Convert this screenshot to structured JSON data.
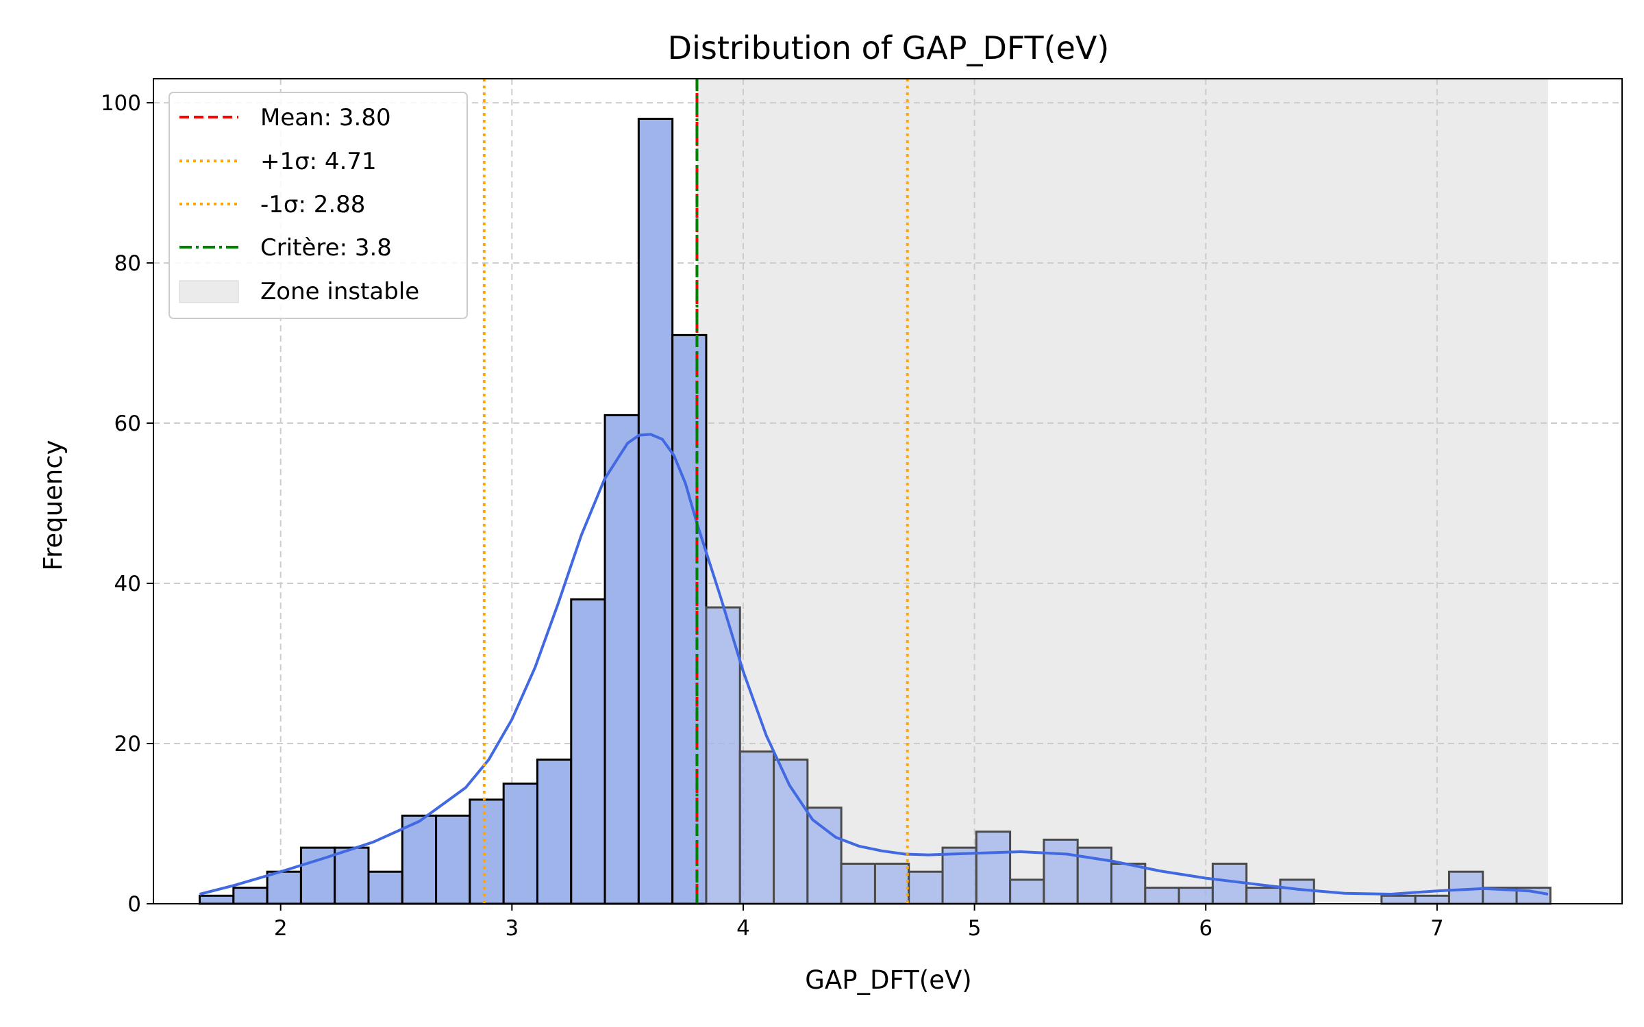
{
  "chart_data": {
    "type": "bar",
    "title": "Distribution of GAP_DFT(eV)",
    "xlabel": "GAP_DFT(eV)",
    "ylabel": "Frequency",
    "xlim": [
      1.45,
      7.8
    ],
    "ylim": [
      0,
      103
    ],
    "xticks": [
      2,
      3,
      4,
      5,
      6,
      7
    ],
    "yticks": [
      0,
      20,
      40,
      60,
      80,
      100
    ],
    "grid": true,
    "bin_width": 0.146,
    "bins_start": 1.65,
    "counts": [
      1,
      2,
      4,
      7,
      7,
      4,
      11,
      11,
      13,
      15,
      18,
      38,
      61,
      98,
      71,
      37,
      19,
      18,
      12,
      5,
      5,
      4,
      7,
      9,
      3,
      8,
      7,
      5,
      2,
      2,
      5,
      2,
      3,
      0,
      0,
      1,
      1,
      4,
      2,
      2
    ],
    "kde": {
      "x": [
        1.65,
        1.8,
        2.0,
        2.2,
        2.4,
        2.6,
        2.8,
        2.9,
        3.0,
        3.1,
        3.2,
        3.3,
        3.4,
        3.5,
        3.55,
        3.6,
        3.65,
        3.7,
        3.75,
        3.8,
        3.9,
        4.0,
        4.1,
        4.2,
        4.3,
        4.4,
        4.5,
        4.6,
        4.7,
        4.8,
        5.0,
        5.2,
        5.4,
        5.6,
        5.8,
        6.0,
        6.2,
        6.4,
        6.6,
        6.8,
        7.0,
        7.2,
        7.4,
        7.48
      ],
      "y": [
        1.2,
        2.3,
        4.0,
        5.8,
        7.7,
        10.3,
        14.5,
        18.0,
        23.0,
        29.5,
        37.5,
        46.0,
        53.0,
        57.5,
        58.5,
        58.6,
        58.0,
        56.0,
        52.5,
        47.5,
        38.5,
        29.0,
        21.0,
        14.8,
        10.5,
        8.3,
        7.2,
        6.6,
        6.2,
        6.1,
        6.3,
        6.5,
        6.2,
        5.3,
        4.1,
        3.2,
        2.5,
        1.8,
        1.3,
        1.2,
        1.6,
        1.9,
        1.6,
        1.2
      ]
    },
    "vlines": [
      {
        "x": 3.8,
        "label": "Mean: 3.80",
        "color": "#ff0000",
        "style": "dashed"
      },
      {
        "x": 4.71,
        "label": "+1σ: 4.71",
        "color": "#ffa500",
        "style": "dotted"
      },
      {
        "x": 2.88,
        "label": "-1σ: 2.88",
        "color": "#ffa500",
        "style": "dotted"
      },
      {
        "x": 3.8,
        "label": "Critère: 3.8",
        "color": "#008000",
        "style": "dashdot"
      }
    ],
    "shaded_region": {
      "x0": 3.8,
      "x1": 7.48,
      "label": "Zone instable",
      "color": "#d3d3d3"
    },
    "legend_position": "upper-left",
    "colors": {
      "bar_fill": "#a0b4ec",
      "bar_edge": "#000000",
      "kde_line": "#4169e1"
    }
  }
}
